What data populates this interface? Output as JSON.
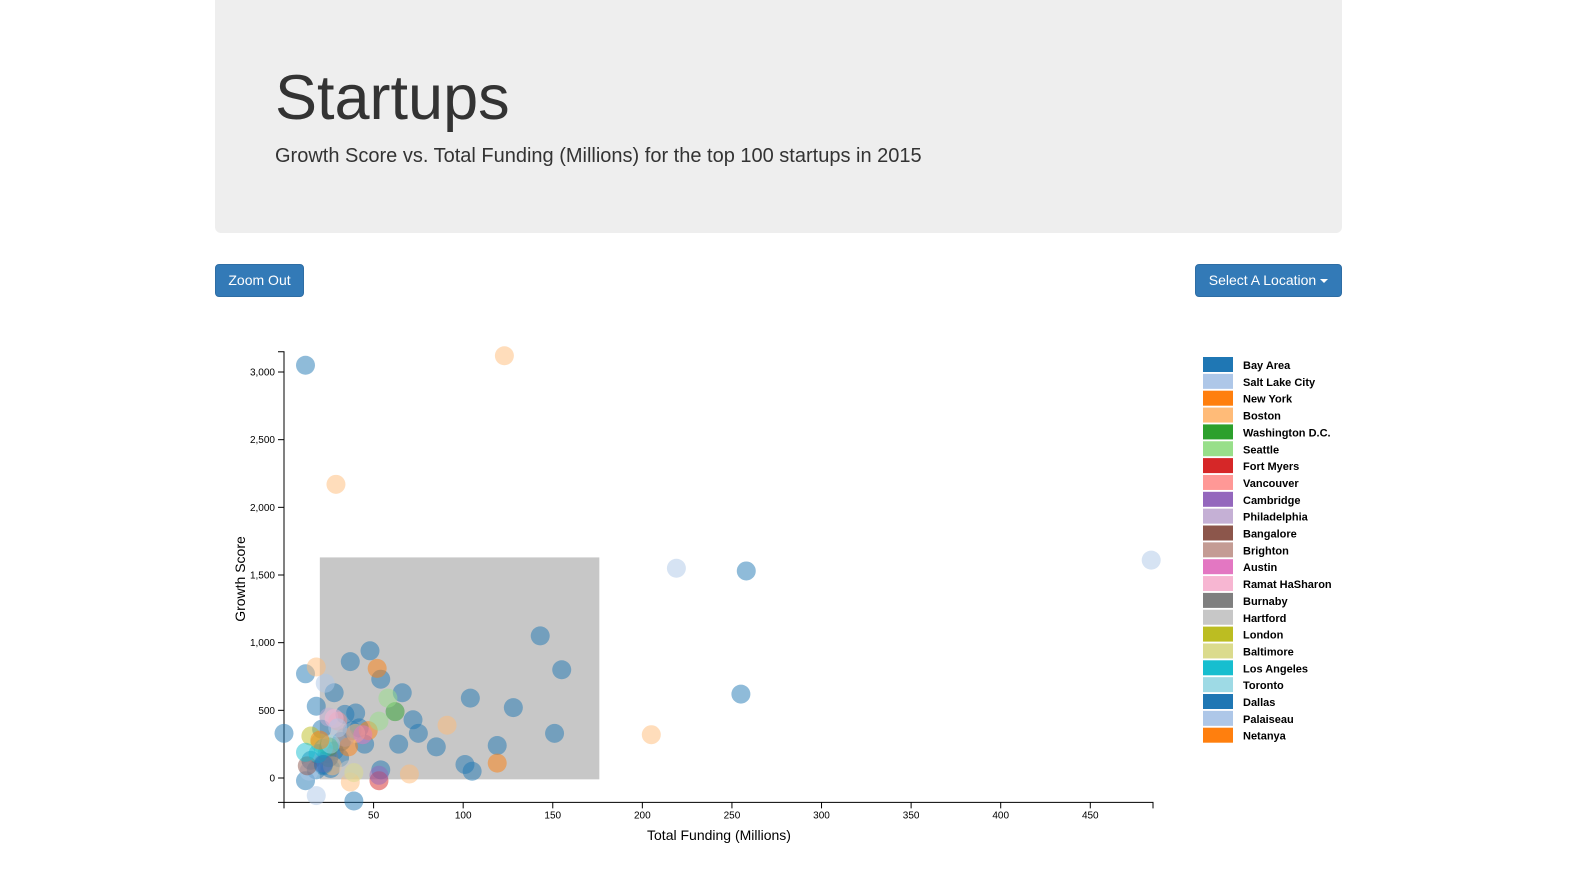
{
  "header": {
    "title": "Startups",
    "subtitle": "Growth Score vs. Total Funding (Millions) for the top 100 startups in 2015"
  },
  "controls": {
    "zoom_out_label": "Zoom Out",
    "location_dropdown_label": "Select A Location"
  },
  "chart_data": {
    "type": "scatter",
    "xlabel": "Total Funding (Millions)",
    "ylabel": "Growth Score",
    "xlim": [
      0,
      485
    ],
    "ylim": [
      -180,
      3150
    ],
    "x_ticks": [
      50,
      100,
      150,
      200,
      250,
      300,
      350,
      400,
      450
    ],
    "y_ticks": [
      0,
      500,
      1000,
      1500,
      2000,
      2500,
      3000
    ],
    "legend_placement": "right",
    "brush_selection": {
      "x": [
        20,
        176
      ],
      "y": [
        -10,
        1630
      ]
    },
    "series": [
      {
        "name": "Bay Area",
        "color": "#1f77b4",
        "points": [
          [
            12,
            3050
          ],
          [
            143,
            1050
          ],
          [
            258,
            1530
          ],
          [
            155,
            800
          ],
          [
            255,
            620
          ],
          [
            48,
            940
          ],
          [
            37,
            860
          ],
          [
            54,
            730
          ],
          [
            66,
            630
          ],
          [
            28,
            630
          ],
          [
            104,
            590
          ],
          [
            128,
            520
          ],
          [
            18,
            530
          ],
          [
            12,
            770
          ],
          [
            40,
            480
          ],
          [
            34,
            470
          ],
          [
            72,
            430
          ],
          [
            21,
            360
          ],
          [
            38,
            350
          ],
          [
            42,
            370
          ],
          [
            75,
            330
          ],
          [
            151,
            330
          ],
          [
            0,
            330
          ],
          [
            32,
            270
          ],
          [
            45,
            250
          ],
          [
            64,
            250
          ],
          [
            85,
            230
          ],
          [
            119,
            240
          ],
          [
            28,
            200
          ],
          [
            24,
            180
          ],
          [
            31,
            150
          ],
          [
            15,
            130
          ],
          [
            101,
            100
          ],
          [
            22,
            90
          ],
          [
            54,
            60
          ],
          [
            105,
            50
          ],
          [
            12,
            -20
          ],
          [
            39,
            -170
          ],
          [
            26,
            70
          ],
          [
            18,
            60
          ]
        ]
      },
      {
        "name": "Salt Lake City",
        "color": "#aec7e8",
        "points": [
          [
            484,
            1610
          ],
          [
            219,
            1550
          ],
          [
            18,
            -130
          ],
          [
            23,
            700
          ],
          [
            14,
            50
          ]
        ]
      },
      {
        "name": "New York",
        "color": "#ff7f0e",
        "points": [
          [
            52,
            810
          ],
          [
            119,
            110
          ],
          [
            47,
            350
          ],
          [
            36,
            230
          ]
        ]
      },
      {
        "name": "Boston",
        "color": "#ffbb78",
        "points": [
          [
            123,
            3120
          ],
          [
            29,
            2170
          ],
          [
            205,
            320
          ],
          [
            18,
            820
          ],
          [
            91,
            390
          ],
          [
            70,
            30
          ],
          [
            37,
            -30
          ],
          [
            40,
            330
          ],
          [
            27,
            90
          ]
        ]
      },
      {
        "name": "Washington D.C.",
        "color": "#2ca02c",
        "points": [
          [
            62,
            490
          ],
          [
            25,
            230
          ]
        ]
      },
      {
        "name": "Seattle",
        "color": "#98df8a",
        "points": [
          [
            58,
            590
          ],
          [
            53,
            420
          ],
          [
            20,
            260
          ]
        ]
      },
      {
        "name": "Fort Myers",
        "color": "#d62728",
        "points": [
          [
            53,
            -20
          ]
        ]
      },
      {
        "name": "Vancouver",
        "color": "#ff9896",
        "points": [
          [
            30,
            420
          ]
        ]
      },
      {
        "name": "Cambridge",
        "color": "#9467bd",
        "points": [
          [
            53,
            20
          ],
          [
            22,
            110
          ]
        ]
      },
      {
        "name": "Philadelphia",
        "color": "#c5b0d5",
        "points": [
          [
            25,
            450
          ]
        ]
      },
      {
        "name": "Bangalore",
        "color": "#8c564b",
        "points": [
          [
            13,
            90
          ]
        ]
      },
      {
        "name": "Brighton",
        "color": "#c49c94",
        "points": [
          [
            34,
            300
          ]
        ]
      },
      {
        "name": "Austin",
        "color": "#e377c2",
        "points": [
          [
            44,
            320
          ]
        ]
      },
      {
        "name": "Ramat HaSharon",
        "color": "#f7b6d2",
        "points": [
          [
            28,
            440
          ]
        ]
      },
      {
        "name": "Burnaby",
        "color": "#7f7f7f",
        "points": [
          [
            25,
            150
          ]
        ]
      },
      {
        "name": "Hartford",
        "color": "#c7c7c7",
        "points": [
          [
            36,
            60
          ]
        ]
      },
      {
        "name": "London",
        "color": "#bcbd22",
        "points": [
          [
            15,
            310
          ]
        ]
      },
      {
        "name": "Baltimore",
        "color": "#dbdb8d",
        "points": [
          [
            39,
            40
          ]
        ]
      },
      {
        "name": "Los Angeles",
        "color": "#17becf",
        "points": [
          [
            12,
            190
          ],
          [
            19,
            180
          ],
          [
            22,
            220
          ]
        ]
      },
      {
        "name": "Toronto",
        "color": "#9edae5",
        "points": [
          [
            26,
            250
          ]
        ]
      },
      {
        "name": "Dallas",
        "color": "#1f77b4",
        "points": [
          [
            22,
            100
          ]
        ]
      },
      {
        "name": "Palaiseau",
        "color": "#aec7e8",
        "points": [
          [
            30,
            370
          ]
        ]
      },
      {
        "name": "Netanya",
        "color": "#ff7f0e",
        "points": [
          [
            20,
            280
          ]
        ]
      }
    ]
  }
}
